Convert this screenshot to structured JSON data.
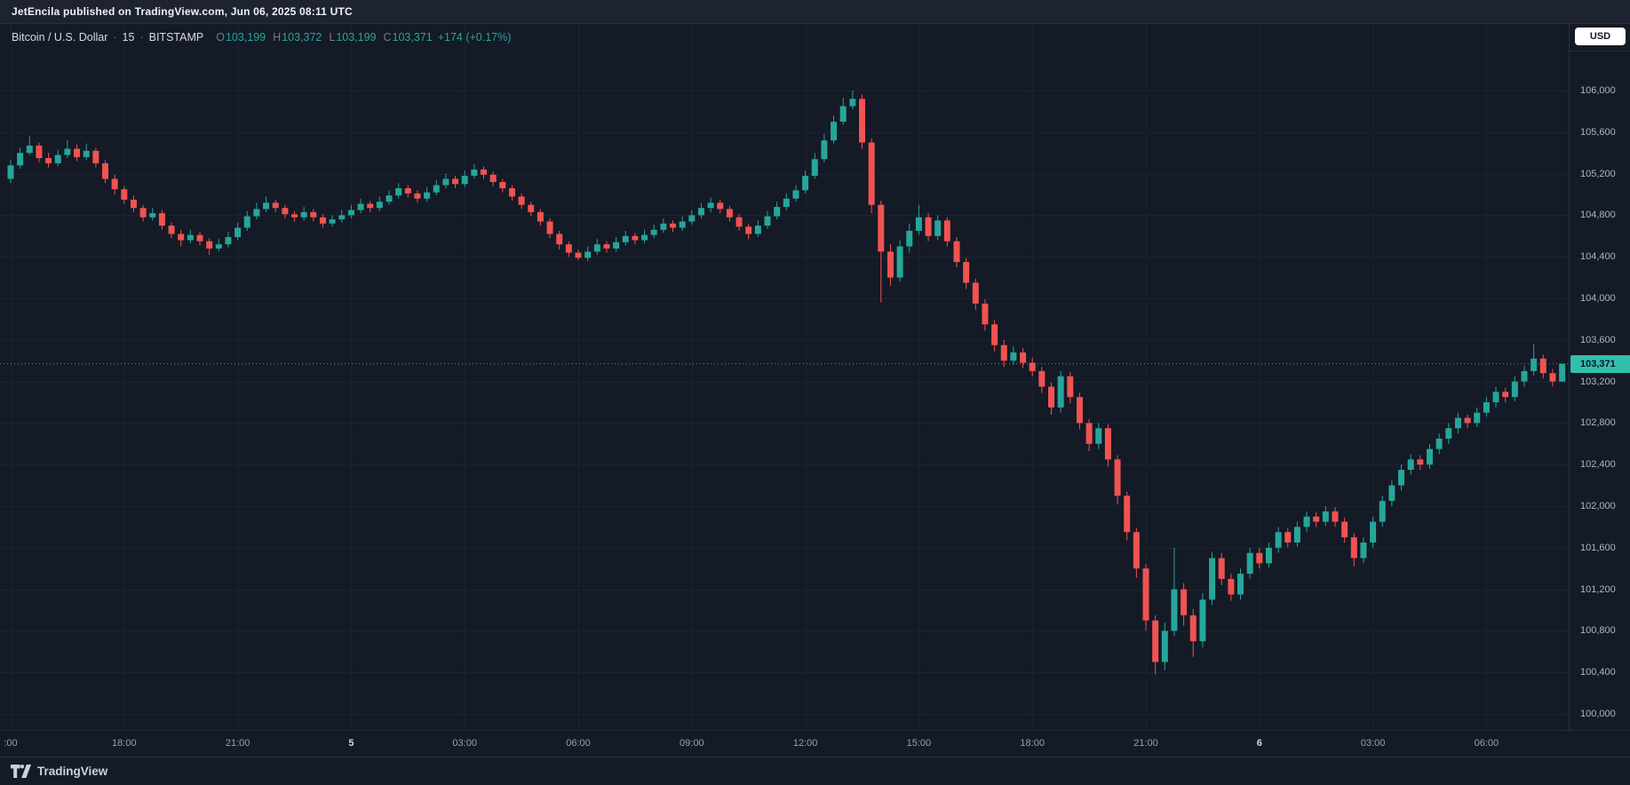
{
  "topbar": {
    "publish_text": "JetEncila published on TradingView.com, Jun 06, 2025 08:11 UTC"
  },
  "legend": {
    "symbol": "Bitcoin / U.S. Dollar",
    "sep": "·",
    "interval": "15",
    "exchange": "BITSTAMP",
    "ohlc": [
      {
        "label": "O",
        "value": "103,199"
      },
      {
        "label": "H",
        "value": "103,372"
      },
      {
        "label": "L",
        "value": "103,199"
      },
      {
        "label": "C",
        "value": "103,371"
      }
    ],
    "change": "+174 (+0.17%)"
  },
  "price_scale": {
    "currency_button": "USD",
    "last_price_label": "103,371"
  },
  "footer": {
    "brand": "TradingView"
  },
  "colors": {
    "background": "#141a26",
    "topbar_bg": "#1e2330",
    "grid": "#1c2330",
    "border": "#2a2e39",
    "text": "#d1d4dc",
    "text_dim": "#787b86",
    "axis_text": "#b2b5be",
    "up": "#26a69a",
    "down": "#f05350",
    "last_price_bg": "#33bfae",
    "last_price_text": "#0b1220",
    "usd_button_bg": "#ffffff",
    "usd_button_text": "#131722",
    "flash_purple": "#8e55f0",
    "flash_blue": "#4f8df7"
  },
  "chart_data": {
    "type": "candlestick",
    "title": "Bitcoin / U.S. Dollar, 15, BITSTAMP",
    "interval": "15 minutes",
    "ylim": [
      100000,
      106000
    ],
    "grid": true,
    "last_price": 103371,
    "current_bar": {
      "open": 103199,
      "high": 103372,
      "low": 103199,
      "close": 103371,
      "change": "+174 (+0.17%)"
    },
    "price_ticks": [
      106000,
      105600,
      105200,
      104800,
      104400,
      104000,
      103600,
      103200,
      102800,
      102400,
      102000,
      101600,
      101200,
      100800,
      100400,
      100000
    ],
    "price_tick_labels": [
      "106,000",
      "105,600",
      "105,200",
      "104,800",
      "104,400",
      "104,000",
      "103,600",
      "103,200",
      "102,800",
      "102,400",
      "102,000",
      "101,600",
      "101,200",
      "100,800",
      "100,400",
      "100,000"
    ],
    "time_ticks": [
      {
        "label": ":00",
        "bar": 0,
        "major": false
      },
      {
        "label": "18:00",
        "bar": 12,
        "major": false
      },
      {
        "label": "21:00",
        "bar": 24,
        "major": false
      },
      {
        "label": "5",
        "bar": 36,
        "major": true
      },
      {
        "label": "03:00",
        "bar": 48,
        "major": false
      },
      {
        "label": "06:00",
        "bar": 60,
        "major": false
      },
      {
        "label": "09:00",
        "bar": 72,
        "major": false
      },
      {
        "label": "12:00",
        "bar": 84,
        "major": false
      },
      {
        "label": "15:00",
        "bar": 96,
        "major": false
      },
      {
        "label": "18:00",
        "bar": 108,
        "major": false
      },
      {
        "label": "21:00",
        "bar": 120,
        "major": false
      },
      {
        "label": "6",
        "bar": 132,
        "major": true
      },
      {
        "label": "03:00",
        "bar": 144,
        "major": false
      },
      {
        "label": "06:00",
        "bar": 156,
        "major": false
      }
    ],
    "candles": [
      [
        105150,
        105330,
        105110,
        105280
      ],
      [
        105280,
        105450,
        105250,
        105400
      ],
      [
        105400,
        105560,
        105380,
        105470
      ],
      [
        105470,
        105500,
        105310,
        105350
      ],
      [
        105350,
        105400,
        105260,
        105300
      ],
      [
        105300,
        105430,
        105270,
        105380
      ],
      [
        105380,
        105520,
        105350,
        105440
      ],
      [
        105440,
        105480,
        105320,
        105360
      ],
      [
        105360,
        105490,
        105330,
        105420
      ],
      [
        105420,
        105450,
        105260,
        105300
      ],
      [
        105300,
        105330,
        105110,
        105150
      ],
      [
        105150,
        105190,
        105000,
        105050
      ],
      [
        105050,
        105080,
        104910,
        104950
      ],
      [
        104950,
        104990,
        104830,
        104870
      ],
      [
        104870,
        104900,
        104740,
        104780
      ],
      [
        104780,
        104870,
        104750,
        104820
      ],
      [
        104820,
        104850,
        104660,
        104700
      ],
      [
        104700,
        104730,
        104580,
        104620
      ],
      [
        104620,
        104660,
        104500,
        104560
      ],
      [
        104560,
        104660,
        104530,
        104610
      ],
      [
        104610,
        104640,
        104510,
        104550
      ],
      [
        104550,
        104580,
        104420,
        104480
      ],
      [
        104480,
        104570,
        104450,
        104520
      ],
      [
        104520,
        104640,
        104490,
        104590
      ],
      [
        104590,
        104730,
        104560,
        104680
      ],
      [
        104680,
        104840,
        104650,
        104790
      ],
      [
        104790,
        104920,
        104760,
        104860
      ],
      [
        104860,
        104980,
        104830,
        104920
      ],
      [
        104920,
        104950,
        104830,
        104870
      ],
      [
        104870,
        104900,
        104770,
        104810
      ],
      [
        104810,
        104840,
        104740,
        104780
      ],
      [
        104780,
        104880,
        104750,
        104830
      ],
      [
        104830,
        104860,
        104740,
        104780
      ],
      [
        104780,
        104810,
        104680,
        104720
      ],
      [
        104720,
        104800,
        104690,
        104760
      ],
      [
        104760,
        104850,
        104730,
        104800
      ],
      [
        104800,
        104900,
        104770,
        104850
      ],
      [
        104850,
        104960,
        104820,
        104910
      ],
      [
        104910,
        104940,
        104830,
        104870
      ],
      [
        104870,
        104980,
        104840,
        104930
      ],
      [
        104930,
        105040,
        104900,
        104990
      ],
      [
        104990,
        105110,
        104960,
        105060
      ],
      [
        105060,
        105090,
        104970,
        105010
      ],
      [
        105010,
        105040,
        104920,
        104960
      ],
      [
        104960,
        105070,
        104930,
        105020
      ],
      [
        105020,
        105140,
        104990,
        105090
      ],
      [
        105090,
        105200,
        105060,
        105150
      ],
      [
        105150,
        105180,
        105060,
        105100
      ],
      [
        105100,
        105230,
        105070,
        105180
      ],
      [
        105180,
        105290,
        105150,
        105240
      ],
      [
        105240,
        105270,
        105150,
        105190
      ],
      [
        105190,
        105220,
        105080,
        105120
      ],
      [
        105120,
        105150,
        105020,
        105060
      ],
      [
        105060,
        105090,
        104940,
        104980
      ],
      [
        104980,
        105010,
        104860,
        104900
      ],
      [
        104900,
        104930,
        104790,
        104830
      ],
      [
        104830,
        104860,
        104700,
        104740
      ],
      [
        104740,
        104770,
        104580,
        104620
      ],
      [
        104620,
        104650,
        104470,
        104520
      ],
      [
        104520,
        104550,
        104400,
        104440
      ],
      [
        104440,
        104470,
        104370,
        104390
      ],
      [
        104390,
        104500,
        104360,
        104450
      ],
      [
        104450,
        104570,
        104420,
        104520
      ],
      [
        104520,
        104550,
        104440,
        104480
      ],
      [
        104480,
        104590,
        104450,
        104540
      ],
      [
        104540,
        104650,
        104510,
        104600
      ],
      [
        104600,
        104630,
        104520,
        104560
      ],
      [
        104560,
        104660,
        104530,
        104610
      ],
      [
        104610,
        104710,
        104580,
        104660
      ],
      [
        104660,
        104770,
        104630,
        104720
      ],
      [
        104720,
        104750,
        104640,
        104680
      ],
      [
        104680,
        104790,
        104650,
        104740
      ],
      [
        104740,
        104850,
        104710,
        104800
      ],
      [
        104800,
        104920,
        104770,
        104870
      ],
      [
        104870,
        104970,
        104830,
        104920
      ],
      [
        104920,
        104950,
        104820,
        104860
      ],
      [
        104860,
        104890,
        104740,
        104780
      ],
      [
        104780,
        104810,
        104650,
        104690
      ],
      [
        104690,
        104720,
        104570,
        104620
      ],
      [
        104620,
        104750,
        104590,
        104700
      ],
      [
        104700,
        104840,
        104670,
        104790
      ],
      [
        104790,
        104930,
        104760,
        104880
      ],
      [
        104880,
        105010,
        104850,
        104960
      ],
      [
        104960,
        105090,
        104930,
        105040
      ],
      [
        105040,
        105230,
        105010,
        105180
      ],
      [
        105180,
        105400,
        105150,
        105340
      ],
      [
        105340,
        105580,
        105310,
        105520
      ],
      [
        105520,
        105760,
        105490,
        105700
      ],
      [
        105700,
        105930,
        105670,
        105850
      ],
      [
        105850,
        106000,
        105820,
        105920
      ],
      [
        105920,
        105960,
        105440,
        105500
      ],
      [
        105500,
        105540,
        104820,
        104900
      ],
      [
        104900,
        104940,
        103960,
        104450
      ],
      [
        104450,
        104520,
        104120,
        104200
      ],
      [
        104200,
        104560,
        104160,
        104500
      ],
      [
        104500,
        104720,
        104440,
        104650
      ],
      [
        104650,
        104900,
        104610,
        104780
      ],
      [
        104780,
        104820,
        104550,
        104600
      ],
      [
        104600,
        104800,
        104560,
        104750
      ],
      [
        104750,
        104780,
        104500,
        104550
      ],
      [
        104550,
        104590,
        104300,
        104350
      ],
      [
        104350,
        104390,
        104090,
        104150
      ],
      [
        104150,
        104190,
        103890,
        103950
      ],
      [
        103950,
        103990,
        103690,
        103750
      ],
      [
        103750,
        103790,
        103490,
        103550
      ],
      [
        103550,
        103600,
        103340,
        103400
      ],
      [
        103400,
        103540,
        103360,
        103480
      ],
      [
        103480,
        103520,
        103330,
        103380
      ],
      [
        103380,
        103430,
        103250,
        103300
      ],
      [
        103300,
        103340,
        103090,
        103150
      ],
      [
        103150,
        103190,
        102880,
        102950
      ],
      [
        102950,
        103300,
        102900,
        103250
      ],
      [
        103250,
        103290,
        102990,
        103050
      ],
      [
        103050,
        103090,
        102740,
        102800
      ],
      [
        102800,
        102840,
        102530,
        102600
      ],
      [
        102600,
        102800,
        102550,
        102750
      ],
      [
        102750,
        102790,
        102380,
        102450
      ],
      [
        102450,
        102490,
        102020,
        102100
      ],
      [
        102100,
        102140,
        101670,
        101750
      ],
      [
        101750,
        101790,
        101310,
        101400
      ],
      [
        101400,
        101440,
        100800,
        100900
      ],
      [
        100900,
        100950,
        100380,
        100500
      ],
      [
        100500,
        100880,
        100420,
        100800
      ],
      [
        100800,
        101600,
        100750,
        101200
      ],
      [
        101200,
        101260,
        100850,
        100950
      ],
      [
        100950,
        101010,
        100550,
        100700
      ],
      [
        100700,
        101160,
        100640,
        101100
      ],
      [
        101100,
        101560,
        101050,
        101500
      ],
      [
        101500,
        101550,
        101240,
        101300
      ],
      [
        101300,
        101350,
        101090,
        101150
      ],
      [
        101150,
        101400,
        101100,
        101350
      ],
      [
        101350,
        101600,
        101300,
        101550
      ],
      [
        101550,
        101600,
        101400,
        101450
      ],
      [
        101450,
        101650,
        101410,
        101600
      ],
      [
        101600,
        101800,
        101550,
        101750
      ],
      [
        101750,
        101790,
        101600,
        101650
      ],
      [
        101650,
        101850,
        101610,
        101800
      ],
      [
        101800,
        101950,
        101750,
        101900
      ],
      [
        101900,
        101940,
        101800,
        101850
      ],
      [
        101850,
        102000,
        101810,
        101950
      ],
      [
        101950,
        101990,
        101800,
        101850
      ],
      [
        101850,
        101890,
        101650,
        101700
      ],
      [
        101700,
        101740,
        101420,
        101500
      ],
      [
        101500,
        101700,
        101450,
        101650
      ],
      [
        101650,
        101900,
        101600,
        101850
      ],
      [
        101850,
        102100,
        101800,
        102050
      ],
      [
        102050,
        102250,
        102000,
        102200
      ],
      [
        102200,
        102400,
        102150,
        102350
      ],
      [
        102350,
        102500,
        102300,
        102450
      ],
      [
        102450,
        102490,
        102350,
        102400
      ],
      [
        102400,
        102600,
        102360,
        102550
      ],
      [
        102550,
        102700,
        102500,
        102650
      ],
      [
        102650,
        102800,
        102600,
        102750
      ],
      [
        102750,
        102900,
        102700,
        102850
      ],
      [
        102850,
        102880,
        102750,
        102800
      ],
      [
        102800,
        102950,
        102760,
        102900
      ],
      [
        102900,
        103050,
        102860,
        103000
      ],
      [
        103000,
        103150,
        102950,
        103100
      ],
      [
        103100,
        103140,
        103000,
        103050
      ],
      [
        103050,
        103250,
        103010,
        103200
      ],
      [
        103200,
        103350,
        103150,
        103300
      ],
      [
        103300,
        103560,
        103260,
        103420
      ],
      [
        103420,
        103460,
        103230,
        103280
      ],
      [
        103280,
        103320,
        103150,
        103200
      ],
      [
        103199,
        103372,
        103199,
        103371
      ]
    ]
  }
}
